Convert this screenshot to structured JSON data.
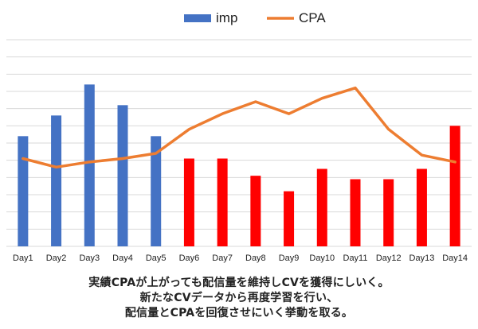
{
  "chart_data": {
    "type": "bar",
    "categories": [
      "Day1",
      "Day2",
      "Day3",
      "Day4",
      "Day5",
      "Day6",
      "Day7",
      "Day8",
      "Day9",
      "Day10",
      "Day11",
      "Day12",
      "Day13",
      "Day14"
    ],
    "series": [
      {
        "name": "imp",
        "kind": "bar",
        "color": "#4472C4",
        "values": [
          64,
          76,
          94,
          82,
          64,
          51,
          51,
          41,
          32,
          45,
          39,
          39,
          45,
          70
        ],
        "point_colors": [
          "#4472C4",
          "#4472C4",
          "#4472C4",
          "#4472C4",
          "#4472C4",
          "#FF0000",
          "#FF0000",
          "#FF0000",
          "#FF0000",
          "#FF0000",
          "#FF0000",
          "#FF0000",
          "#FF0000",
          "#FF0000"
        ]
      },
      {
        "name": "CPA",
        "kind": "line",
        "color": "#ED7D31",
        "values": [
          51,
          46,
          49,
          51,
          54,
          68,
          77,
          84,
          77,
          86,
          92,
          68,
          53,
          49
        ]
      }
    ],
    "ylim": [
      0,
      120
    ],
    "gridlines": 12,
    "grid": true,
    "y_tick_labels_shown": false,
    "legend_position": "top-center"
  },
  "caption": {
    "line1": "実績CPAが上がっても配信量を維持しCVを獲得にしいく。",
    "line2": "新たなCVデータから再度学習を行い、",
    "line3": "配信量とCPAを回復させにいく挙動を取る。"
  }
}
